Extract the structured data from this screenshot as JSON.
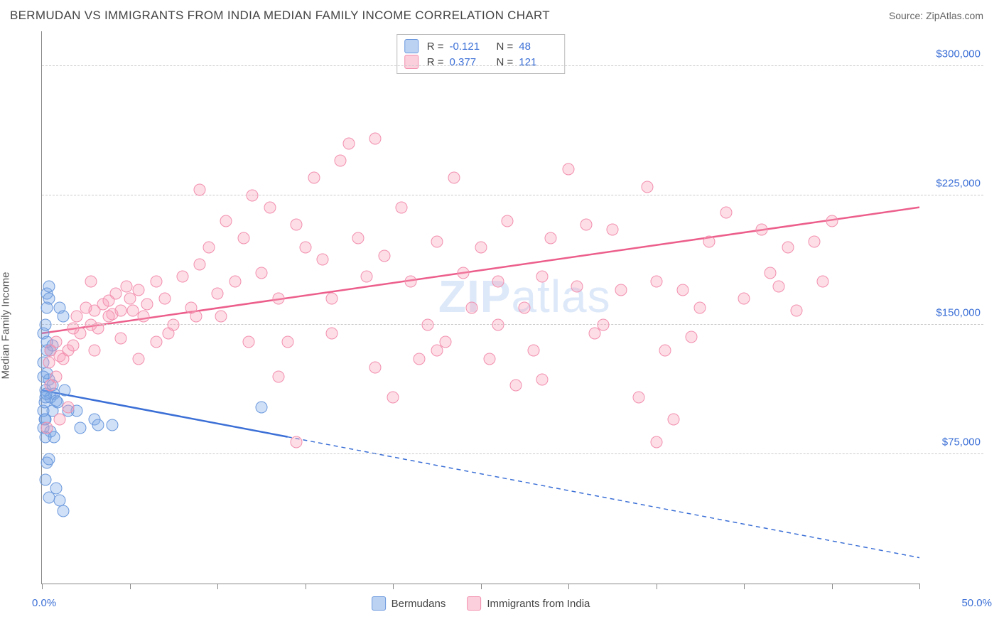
{
  "header": {
    "title": "BERMUDAN VS IMMIGRANTS FROM INDIA MEDIAN FAMILY INCOME CORRELATION CHART",
    "source": "Source: ZipAtlas.com"
  },
  "chart": {
    "type": "scatter",
    "y_axis_label": "Median Family Income",
    "watermark_a": "ZIP",
    "watermark_b": "atlas",
    "xlim": [
      0,
      50
    ],
    "ylim": [
      0,
      320000
    ],
    "x_tick_positions": [
      0,
      5,
      10,
      15,
      20,
      25,
      30,
      35,
      40,
      45,
      50
    ],
    "x_label_min": "0.0%",
    "x_label_max": "50.0%",
    "y_gridlines": [
      75000,
      150000,
      225000,
      300000
    ],
    "y_tick_labels": [
      "$75,000",
      "$150,000",
      "$225,000",
      "$300,000"
    ],
    "background_color": "#ffffff",
    "grid_color": "#cccccc",
    "axis_color": "#888888",
    "tick_label_color": "#3b6fd6",
    "series": [
      {
        "id": "a",
        "name": "Bermudans",
        "fill_color": "rgba(120,165,230,0.35)",
        "stroke_color": "#6a98dd",
        "trend_color": "#3b6fd6",
        "R": "-0.121",
        "N": "48",
        "trend": {
          "x1": 0,
          "y1": 112000,
          "x2": 14,
          "y2": 85000,
          "dash_x2": 50,
          "dash_y2": 15000
        },
        "points": [
          [
            0.1,
            145000
          ],
          [
            0.2,
            150000
          ],
          [
            0.3,
            168000
          ],
          [
            0.4,
            172000
          ],
          [
            0.1,
            128000
          ],
          [
            0.2,
            112000
          ],
          [
            0.3,
            122000
          ],
          [
            0.4,
            118000
          ],
          [
            0.2,
            95000
          ],
          [
            0.5,
            108000
          ],
          [
            0.6,
            115000
          ],
          [
            0.7,
            110000
          ],
          [
            0.8,
            106000
          ],
          [
            0.3,
            70000
          ],
          [
            0.4,
            72000
          ],
          [
            0.6,
            100000
          ],
          [
            1.0,
            160000
          ],
          [
            1.2,
            155000
          ],
          [
            0.9,
            105000
          ],
          [
            1.5,
            100000
          ],
          [
            1.3,
            112000
          ],
          [
            0.2,
            60000
          ],
          [
            0.4,
            50000
          ],
          [
            0.8,
            55000
          ],
          [
            1.0,
            48000
          ],
          [
            1.2,
            42000
          ],
          [
            0.5,
            88000
          ],
          [
            0.7,
            85000
          ],
          [
            2.0,
            100000
          ],
          [
            2.2,
            90000
          ],
          [
            3.0,
            95000
          ],
          [
            3.2,
            92000
          ],
          [
            4.0,
            92000
          ],
          [
            0.3,
            160000
          ],
          [
            0.1,
            100000
          ],
          [
            0.15,
            105000
          ],
          [
            0.2,
            108000
          ],
          [
            0.25,
            110000
          ],
          [
            0.1,
            90000
          ],
          [
            0.15,
            95000
          ],
          [
            0.2,
            85000
          ],
          [
            0.5,
            135000
          ],
          [
            0.6,
            138000
          ],
          [
            0.3,
            135000
          ],
          [
            12.5,
            102000
          ],
          [
            0.4,
            165000
          ],
          [
            0.3,
            140000
          ],
          [
            0.1,
            120000
          ]
        ]
      },
      {
        "id": "b",
        "name": "Immigrants from India",
        "fill_color": "rgba(248,160,185,0.35)",
        "stroke_color": "#f28fae",
        "trend_color": "#ec5e8b",
        "R": "0.377",
        "N": "121",
        "trend": {
          "x1": 0,
          "y1": 145000,
          "x2": 50,
          "y2": 218000
        },
        "points": [
          [
            0.5,
            115000
          ],
          [
            0.8,
            120000
          ],
          [
            1.0,
            132000
          ],
          [
            1.2,
            130000
          ],
          [
            1.5,
            135000
          ],
          [
            1.8,
            138000
          ],
          [
            2.0,
            155000
          ],
          [
            2.2,
            145000
          ],
          [
            2.5,
            160000
          ],
          [
            2.8,
            150000
          ],
          [
            3.0,
            158000
          ],
          [
            3.2,
            148000
          ],
          [
            3.5,
            162000
          ],
          [
            3.8,
            164000
          ],
          [
            4.0,
            156000
          ],
          [
            4.2,
            168000
          ],
          [
            4.5,
            158000
          ],
          [
            4.8,
            172000
          ],
          [
            5.0,
            165000
          ],
          [
            5.2,
            158000
          ],
          [
            5.5,
            170000
          ],
          [
            5.8,
            155000
          ],
          [
            6.0,
            162000
          ],
          [
            6.5,
            175000
          ],
          [
            7.0,
            165000
          ],
          [
            7.5,
            150000
          ],
          [
            8.0,
            178000
          ],
          [
            8.5,
            160000
          ],
          [
            9.0,
            185000
          ],
          [
            9.5,
            195000
          ],
          [
            10.0,
            168000
          ],
          [
            10.5,
            210000
          ],
          [
            11.0,
            175000
          ],
          [
            11.5,
            200000
          ],
          [
            12.0,
            225000
          ],
          [
            12.5,
            180000
          ],
          [
            13.0,
            218000
          ],
          [
            13.5,
            165000
          ],
          [
            14.0,
            140000
          ],
          [
            14.5,
            208000
          ],
          [
            15.0,
            195000
          ],
          [
            15.5,
            235000
          ],
          [
            16.0,
            188000
          ],
          [
            16.5,
            165000
          ],
          [
            17.0,
            245000
          ],
          [
            17.5,
            255000
          ],
          [
            18.0,
            200000
          ],
          [
            18.5,
            178000
          ],
          [
            19.0,
            258000
          ],
          [
            19.5,
            190000
          ],
          [
            20.0,
            108000
          ],
          [
            20.5,
            218000
          ],
          [
            21.0,
            175000
          ],
          [
            21.5,
            130000
          ],
          [
            22.0,
            150000
          ],
          [
            22.5,
            198000
          ],
          [
            23.0,
            140000
          ],
          [
            23.5,
            235000
          ],
          [
            24.0,
            180000
          ],
          [
            24.5,
            160000
          ],
          [
            25.0,
            195000
          ],
          [
            25.5,
            130000
          ],
          [
            26.0,
            175000
          ],
          [
            26.5,
            210000
          ],
          [
            27.0,
            115000
          ],
          [
            27.5,
            160000
          ],
          [
            28.0,
            135000
          ],
          [
            28.5,
            178000
          ],
          [
            29.0,
            200000
          ],
          [
            30.0,
            240000
          ],
          [
            30.5,
            172000
          ],
          [
            31.0,
            208000
          ],
          [
            32.0,
            150000
          ],
          [
            32.5,
            205000
          ],
          [
            33.0,
            170000
          ],
          [
            34.0,
            108000
          ],
          [
            34.5,
            230000
          ],
          [
            35.0,
            175000
          ],
          [
            35.5,
            135000
          ],
          [
            36.0,
            95000
          ],
          [
            36.5,
            170000
          ],
          [
            37.0,
            143000
          ],
          [
            38.0,
            198000
          ],
          [
            39.0,
            215000
          ],
          [
            40.0,
            165000
          ],
          [
            41.0,
            205000
          ],
          [
            42.0,
            172000
          ],
          [
            43.0,
            158000
          ],
          [
            44.0,
            198000
          ],
          [
            45.0,
            210000
          ],
          [
            1.0,
            95000
          ],
          [
            1.5,
            102000
          ],
          [
            0.3,
            90000
          ],
          [
            0.5,
            135000
          ],
          [
            0.8,
            140000
          ],
          [
            14.5,
            82000
          ],
          [
            35.0,
            82000
          ],
          [
            6.5,
            140000
          ],
          [
            7.2,
            145000
          ],
          [
            8.8,
            155000
          ],
          [
            11.8,
            140000
          ],
          [
            13.5,
            120000
          ],
          [
            3.0,
            135000
          ],
          [
            4.5,
            142000
          ],
          [
            5.5,
            130000
          ],
          [
            9.0,
            228000
          ],
          [
            10.2,
            155000
          ],
          [
            16.5,
            145000
          ],
          [
            19.0,
            125000
          ],
          [
            22.5,
            135000
          ],
          [
            26.0,
            150000
          ],
          [
            28.5,
            118000
          ],
          [
            31.5,
            145000
          ],
          [
            37.5,
            160000
          ],
          [
            41.5,
            180000
          ],
          [
            42.5,
            195000
          ],
          [
            44.5,
            175000
          ],
          [
            0.4,
            128000
          ],
          [
            1.8,
            148000
          ],
          [
            2.8,
            175000
          ],
          [
            3.8,
            155000
          ]
        ]
      }
    ],
    "legend": {
      "items": [
        "Bermudans",
        "Immigrants from India"
      ]
    },
    "stats_labels": {
      "R": "R =",
      "N": "N ="
    }
  }
}
